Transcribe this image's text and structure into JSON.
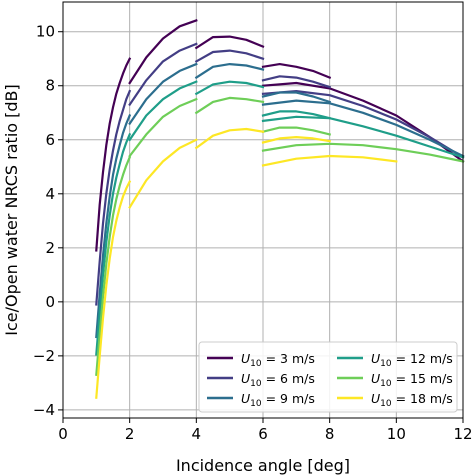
{
  "chart_data": {
    "type": "line",
    "xlabel": "Incidence angle [deg]",
    "ylabel": "Ice/Open water NRCS ratio [dB]",
    "xlim": [
      0,
      12
    ],
    "ylim": [
      -4.3,
      11.1
    ],
    "xticks": [
      0,
      2,
      4,
      6,
      8,
      10,
      12
    ],
    "yticks": [
      -4,
      -2,
      0,
      2,
      4,
      6,
      8,
      10
    ],
    "grid": true,
    "legend_position": "bottom-right",
    "colors": [
      "#440154",
      "#433e85",
      "#2c6e8e",
      "#1f9e89",
      "#6ece58",
      "#fde725"
    ],
    "legend": [
      {
        "sym": "U",
        "sub": "10",
        "text": " = 3 m/s",
        "color": "#440154"
      },
      {
        "sym": "U",
        "sub": "10",
        "text": " = 6 m/s",
        "color": "#433e85"
      },
      {
        "sym": "U",
        "sub": "10",
        "text": " = 9 m/s",
        "color": "#2c6e8e"
      },
      {
        "sym": "U",
        "sub": "10",
        "text": " = 12 m/s",
        "color": "#1f9e89"
      },
      {
        "sym": "U",
        "sub": "10",
        "text": " = 15 m/s",
        "color": "#6ece58"
      },
      {
        "sym": "U",
        "sub": "10",
        "text": " = 18 m/s",
        "color": "#fde725"
      }
    ],
    "series": [
      {
        "color": "#440154",
        "x": [
          1.0,
          1.1,
          1.2,
          1.3,
          1.4,
          1.5,
          1.6,
          1.7,
          1.8,
          1.9,
          2.0
        ],
        "y": [
          1.9,
          3.6,
          4.8,
          5.8,
          6.6,
          7.2,
          7.7,
          8.1,
          8.45,
          8.75,
          9.0
        ]
      },
      {
        "color": "#440154",
        "x": [
          2.0,
          2.5,
          3.0,
          3.5,
          4.0
        ],
        "y": [
          8.1,
          9.05,
          9.75,
          10.2,
          10.42
        ]
      },
      {
        "color": "#440154",
        "x": [
          4.0,
          4.5,
          5.0,
          5.5,
          6.0
        ],
        "y": [
          9.4,
          9.8,
          9.82,
          9.7,
          9.45
        ]
      },
      {
        "color": "#440154",
        "x": [
          6.0,
          6.5,
          7.0,
          7.5,
          8.0
        ],
        "y": [
          8.7,
          8.8,
          8.7,
          8.55,
          8.3
        ]
      },
      {
        "color": "#440154",
        "x": [
          6.0,
          7.0,
          8.0,
          9.0,
          10.0,
          11.0,
          12.0
        ],
        "y": [
          8.0,
          8.1,
          7.9,
          7.45,
          6.9,
          6.1,
          5.2
        ]
      },
      {
        "color": "#433e85",
        "x": [
          1.0,
          1.1,
          1.2,
          1.3,
          1.4,
          1.5,
          1.6,
          1.7,
          1.8,
          1.9,
          2.0
        ],
        "y": [
          -0.1,
          1.5,
          2.9,
          4.0,
          4.9,
          5.6,
          6.2,
          6.7,
          7.1,
          7.5,
          7.8
        ]
      },
      {
        "color": "#433e85",
        "x": [
          2.0,
          2.5,
          3.0,
          3.5,
          4.0
        ],
        "y": [
          7.3,
          8.2,
          8.9,
          9.3,
          9.55
        ]
      },
      {
        "color": "#433e85",
        "x": [
          4.0,
          4.5,
          5.0,
          5.5,
          6.0
        ],
        "y": [
          8.9,
          9.25,
          9.3,
          9.2,
          9.0
        ]
      },
      {
        "color": "#433e85",
        "x": [
          6.0,
          6.5,
          7.0,
          7.5,
          8.0
        ],
        "y": [
          8.2,
          8.35,
          8.3,
          8.15,
          7.95
        ]
      },
      {
        "color": "#433e85",
        "x": [
          6.0,
          7.0,
          8.0,
          9.0,
          10.0,
          11.0,
          12.0
        ],
        "y": [
          7.7,
          7.8,
          7.65,
          7.25,
          6.75,
          6.1,
          5.35
        ]
      },
      {
        "color": "#2c6e8e",
        "x": [
          1.0,
          1.1,
          1.2,
          1.3,
          1.4,
          1.5,
          1.6,
          1.7,
          1.8,
          1.9,
          2.0
        ],
        "y": [
          -1.3,
          0.3,
          1.7,
          2.9,
          3.9,
          4.7,
          5.3,
          5.8,
          6.25,
          6.6,
          6.9
        ]
      },
      {
        "color": "#2c6e8e",
        "x": [
          2.0,
          2.5,
          3.0,
          3.5,
          4.0
        ],
        "y": [
          6.6,
          7.5,
          8.15,
          8.55,
          8.8
        ]
      },
      {
        "color": "#2c6e8e",
        "x": [
          4.0,
          4.5,
          5.0,
          5.5,
          6.0
        ],
        "y": [
          8.3,
          8.7,
          8.8,
          8.75,
          8.6
        ]
      },
      {
        "color": "#2c6e8e",
        "x": [
          6.0,
          6.5,
          7.0,
          7.5,
          8.0
        ],
        "y": [
          7.6,
          7.75,
          7.75,
          7.6,
          7.4
        ]
      },
      {
        "color": "#2c6e8e",
        "x": [
          6.0,
          7.0,
          8.0,
          9.0,
          10.0,
          11.0,
          12.0
        ],
        "y": [
          7.3,
          7.45,
          7.35,
          7.0,
          6.55,
          6.0,
          5.4
        ]
      },
      {
        "color": "#1f9e89",
        "x": [
          1.0,
          1.1,
          1.2,
          1.3,
          1.4,
          1.5,
          1.6,
          1.7,
          1.8,
          1.9,
          2.0
        ],
        "y": [
          -1.95,
          -0.4,
          1.0,
          2.2,
          3.2,
          4.0,
          4.6,
          5.1,
          5.55,
          5.9,
          6.2
        ]
      },
      {
        "color": "#1f9e89",
        "x": [
          2.0,
          2.5,
          3.0,
          3.5,
          4.0
        ],
        "y": [
          6.0,
          6.9,
          7.5,
          7.9,
          8.15
        ]
      },
      {
        "color": "#1f9e89",
        "x": [
          4.0,
          4.5,
          5.0,
          5.5,
          6.0
        ],
        "y": [
          7.7,
          8.05,
          8.15,
          8.1,
          7.95
        ]
      },
      {
        "color": "#1f9e89",
        "x": [
          6.0,
          6.5,
          7.0,
          7.5,
          8.0
        ],
        "y": [
          6.9,
          7.05,
          7.05,
          6.95,
          6.8
        ]
      },
      {
        "color": "#1f9e89",
        "x": [
          6.0,
          7.0,
          8.0,
          9.0,
          10.0,
          11.0,
          12.0
        ],
        "y": [
          6.7,
          6.85,
          6.8,
          6.5,
          6.15,
          5.75,
          5.35
        ]
      },
      {
        "color": "#6ece58",
        "x": [
          1.0,
          1.1,
          1.2,
          1.3,
          1.4,
          1.5,
          1.6,
          1.7,
          1.8,
          1.9,
          2.0
        ],
        "y": [
          -2.7,
          -1.2,
          0.2,
          1.4,
          2.4,
          3.2,
          3.8,
          4.3,
          4.7,
          5.05,
          5.35
        ]
      },
      {
        "color": "#6ece58",
        "x": [
          2.0,
          2.5,
          3.0,
          3.5,
          4.0
        ],
        "y": [
          5.4,
          6.2,
          6.85,
          7.25,
          7.5
        ]
      },
      {
        "color": "#6ece58",
        "x": [
          4.0,
          4.5,
          5.0,
          5.5,
          6.0
        ],
        "y": [
          7.0,
          7.4,
          7.55,
          7.5,
          7.4
        ]
      },
      {
        "color": "#6ece58",
        "x": [
          6.0,
          6.5,
          7.0,
          7.5,
          8.0
        ],
        "y": [
          6.3,
          6.45,
          6.45,
          6.35,
          6.2
        ]
      },
      {
        "color": "#6ece58",
        "x": [
          6.0,
          7.0,
          8.0,
          9.0,
          10.0,
          11.0,
          12.0
        ],
        "y": [
          5.6,
          5.8,
          5.85,
          5.8,
          5.65,
          5.45,
          5.2
        ]
      },
      {
        "color": "#fde725",
        "x": [
          1.0,
          1.1,
          1.2,
          1.3,
          1.4,
          1.5,
          1.6,
          1.7,
          1.8,
          1.9,
          2.0
        ],
        "y": [
          -3.55,
          -2.0,
          -0.6,
          0.6,
          1.6,
          2.4,
          3.0,
          3.5,
          3.9,
          4.2,
          4.45
        ]
      },
      {
        "color": "#fde725",
        "x": [
          2.0,
          2.5,
          3.0,
          3.5,
          4.0
        ],
        "y": [
          3.5,
          4.5,
          5.2,
          5.7,
          6.0
        ]
      },
      {
        "color": "#fde725",
        "x": [
          4.0,
          4.5,
          5.0,
          5.5,
          6.0
        ],
        "y": [
          5.7,
          6.15,
          6.35,
          6.4,
          6.3
        ]
      },
      {
        "color": "#fde725",
        "x": [
          6.0,
          6.5,
          7.0,
          7.5,
          8.0
        ],
        "y": [
          5.9,
          6.05,
          6.1,
          6.05,
          5.95
        ]
      },
      {
        "color": "#fde725",
        "x": [
          6.0,
          7.0,
          8.0,
          9.0,
          10.0
        ],
        "y": [
          5.05,
          5.3,
          5.4,
          5.35,
          5.2
        ]
      }
    ]
  }
}
